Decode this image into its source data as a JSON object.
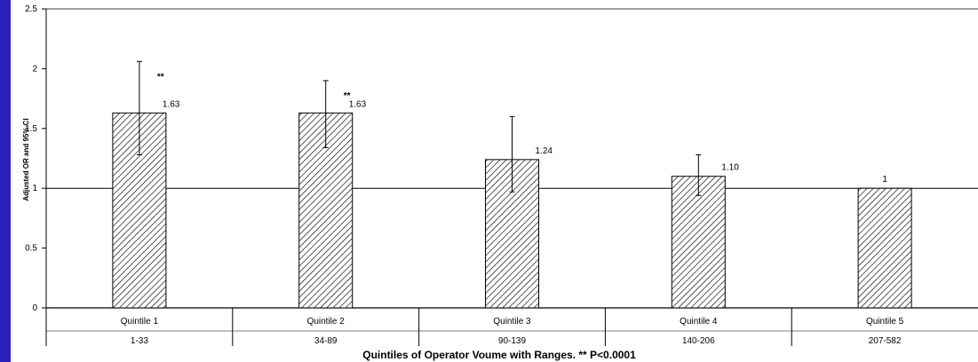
{
  "chart_data": {
    "type": "bar",
    "title": "",
    "xlabel": "Quintiles of Operator Voume with Ranges. ** P<0.0001",
    "ylabel": "Adjusted OR and 95% CI",
    "ylim": [
      0,
      2.5
    ],
    "yticks": [
      0,
      0.5,
      1,
      1.5,
      2,
      2.5
    ],
    "ytick_labels": [
      "0",
      "0.5",
      "1",
      "1.5",
      "2",
      "2.5"
    ],
    "reference_line": 1,
    "categories": [
      "Quintile 1",
      "Quintile 2",
      "Quintile 3",
      "Quintile 4",
      "Quintile 5"
    ],
    "ranges": [
      "1-33",
      "34-89",
      "90-139",
      "140-206",
      "207-582"
    ],
    "values": [
      1.63,
      1.63,
      1.24,
      1.1,
      1
    ],
    "value_labels": [
      "1.63",
      "1.63",
      "1.24",
      "1.10",
      "1"
    ],
    "ci_lower": [
      1.28,
      1.34,
      0.97,
      0.94,
      null
    ],
    "ci_upper": [
      2.06,
      1.9,
      1.6,
      1.28,
      null
    ],
    "significance": [
      "**",
      "**",
      "",
      "",
      ""
    ],
    "bar_pattern": "diagonal-hatch",
    "grid": false,
    "legend": "none"
  }
}
